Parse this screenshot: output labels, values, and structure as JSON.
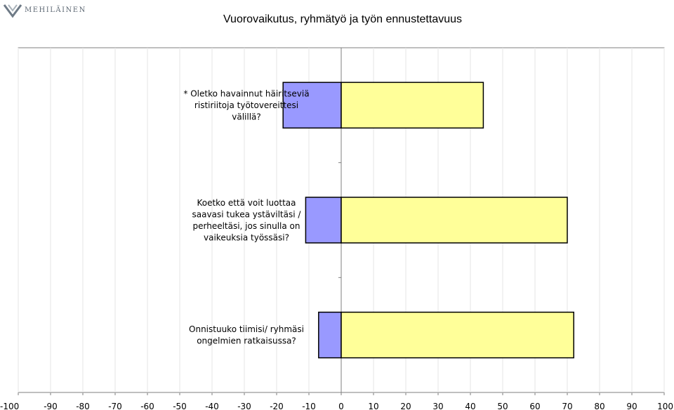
{
  "brand": {
    "name": "MEHILÄINEN"
  },
  "chart_data": {
    "type": "bar",
    "orientation": "horizontal",
    "title": "Vuorovaikutus, ryhmätyö ja  työn ennustettavuus",
    "xlim": [
      -100,
      100
    ],
    "x_ticks": [
      "-100",
      "-90",
      "-80",
      "-70",
      "-60",
      "-50",
      "-40",
      "-30",
      "-20",
      "-10",
      "0",
      "10",
      "20",
      "30",
      "40",
      "50",
      "60",
      "70",
      "80",
      "90",
      "100"
    ],
    "grid": "vertical",
    "categories": [
      [
        "* Oletko havainnut häiritseviä",
        "ristiriitoja työtovereittesi",
        "välillä?"
      ],
      [
        "Koetko että voit luottaa",
        "saavasi tukea ystäviltäsi /",
        "perheeltäsi, jos sinulla on",
        "vaikeuksia työssäsi?"
      ],
      [
        "Onnistuuko tiimisi/ ryhmäsi",
        "ongelmien ratkaisussa?"
      ]
    ],
    "series": [
      {
        "color": "#9999ff",
        "values": [
          -18,
          -11,
          -7
        ]
      },
      {
        "color": "#ffff99",
        "values": [
          44,
          70,
          72
        ]
      }
    ]
  }
}
